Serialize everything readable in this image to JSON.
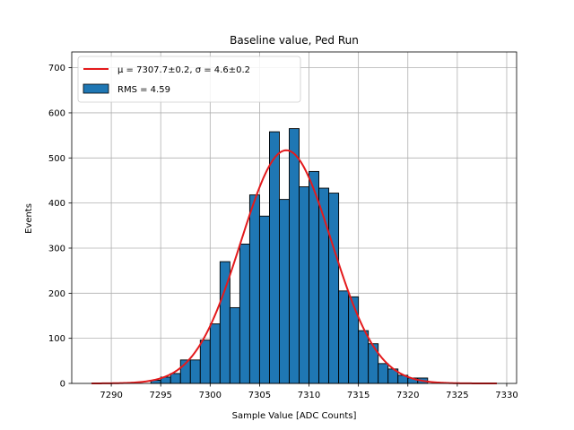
{
  "chart_data": {
    "type": "bar",
    "title": "Baseline value, Ped Run",
    "xlabel": "Sample Value [ADC Counts]",
    "ylabel": "Events",
    "xlim": [
      7286,
      7331
    ],
    "ylim": [
      0,
      735
    ],
    "xticks": [
      7290,
      7295,
      7300,
      7305,
      7310,
      7315,
      7320,
      7325,
      7330
    ],
    "yticks": [
      0,
      100,
      200,
      300,
      400,
      500,
      600,
      700
    ],
    "grid": true,
    "legend_position": "top-left",
    "histogram": {
      "name": "RMS = 4.59",
      "color": "#1f77b4",
      "edgecolor": "#000000",
      "bins": [
        {
          "x0": 7294,
          "x1": 7295,
          "value": 7
        },
        {
          "x0": 7295,
          "x1": 7296,
          "value": 14
        },
        {
          "x0": 7296,
          "x1": 7297,
          "value": 22
        },
        {
          "x0": 7297,
          "x1": 7298,
          "value": 52
        },
        {
          "x0": 7298,
          "x1": 7299,
          "value": 52
        },
        {
          "x0": 7299,
          "x1": 7300,
          "value": 96
        },
        {
          "x0": 7300,
          "x1": 7301,
          "value": 132
        },
        {
          "x0": 7301,
          "x1": 7302,
          "value": 270
        },
        {
          "x0": 7302,
          "x1": 7303,
          "value": 168
        },
        {
          "x0": 7303,
          "x1": 7304,
          "value": 309
        },
        {
          "x0": 7304,
          "x1": 7305,
          "value": 418
        },
        {
          "x0": 7305,
          "x1": 7306,
          "value": 371
        },
        {
          "x0": 7306,
          "x1": 7307,
          "value": 558
        },
        {
          "x0": 7307,
          "x1": 7308,
          "value": 408
        },
        {
          "x0": 7308,
          "x1": 7309,
          "value": 565
        },
        {
          "x0": 7309,
          "x1": 7310,
          "value": 436
        },
        {
          "x0": 7310,
          "x1": 7311,
          "value": 470
        },
        {
          "x0": 7311,
          "x1": 7312,
          "value": 433
        },
        {
          "x0": 7312,
          "x1": 7313,
          "value": 422
        },
        {
          "x0": 7313,
          "x1": 7314,
          "value": 205
        },
        {
          "x0": 7314,
          "x1": 7315,
          "value": 192
        },
        {
          "x0": 7315,
          "x1": 7316,
          "value": 117
        },
        {
          "x0": 7316,
          "x1": 7317,
          "value": 88
        },
        {
          "x0": 7317,
          "x1": 7318,
          "value": 44
        },
        {
          "x0": 7318,
          "x1": 7319,
          "value": 32
        },
        {
          "x0": 7319,
          "x1": 7320,
          "value": 18
        },
        {
          "x0": 7320,
          "x1": 7321,
          "value": 12
        },
        {
          "x0": 7321,
          "x1": 7322,
          "value": 12
        }
      ]
    },
    "fit": {
      "name_prefix": "μ = 7307.7±0.2, σ = 4.6±0.2",
      "color": "#e41a1c",
      "type": "gaussian",
      "mu": 7307.7,
      "sigma": 4.6,
      "amplitude": 517,
      "x_range": [
        7288,
        7329
      ]
    }
  }
}
